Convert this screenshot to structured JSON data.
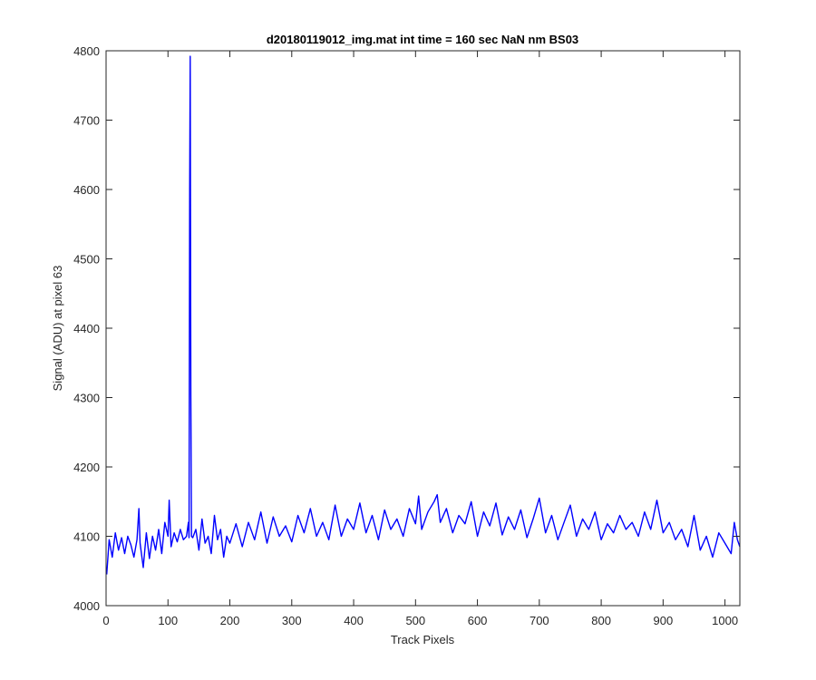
{
  "chart_data": {
    "type": "line",
    "title": "d20180119012_img.mat int time = 160 sec  NaN nm BS03",
    "xlabel": "Track Pixels",
    "ylabel": "Signal (ADU) at pixel 63",
    "xlim": [
      0,
      1024
    ],
    "ylim": [
      4000,
      4800
    ],
    "xticks": [
      0,
      100,
      200,
      300,
      400,
      500,
      600,
      700,
      800,
      900,
      1000
    ],
    "yticks": [
      4000,
      4100,
      4200,
      4300,
      4400,
      4500,
      4600,
      4700,
      4800
    ],
    "grid": false,
    "box": true,
    "line_color": "#0000ff",
    "series": [
      {
        "points_x": [
          1,
          5,
          10,
          15,
          20,
          25,
          30,
          35,
          40,
          45,
          50,
          53,
          55,
          60,
          65,
          70,
          75,
          80,
          85,
          90,
          95,
          100,
          102,
          105,
          110,
          115,
          120,
          125,
          130,
          133,
          134,
          135,
          136,
          137,
          138,
          140,
          145,
          150,
          155,
          160,
          165,
          170,
          175,
          180,
          185,
          190,
          195,
          200,
          210,
          220,
          230,
          240,
          250,
          260,
          270,
          280,
          290,
          300,
          310,
          320,
          330,
          340,
          350,
          360,
          370,
          380,
          390,
          400,
          410,
          420,
          430,
          440,
          450,
          460,
          470,
          480,
          490,
          500,
          505,
          510,
          520,
          530,
          535,
          540,
          550,
          560,
          570,
          580,
          590,
          600,
          610,
          620,
          630,
          640,
          650,
          660,
          670,
          680,
          690,
          700,
          710,
          720,
          730,
          740,
          750,
          760,
          770,
          780,
          790,
          800,
          810,
          820,
          830,
          840,
          850,
          860,
          870,
          880,
          890,
          900,
          910,
          920,
          930,
          940,
          950,
          960,
          970,
          980,
          990,
          1000,
          1010,
          1015,
          1020,
          1024
        ],
        "points_y": [
          4045,
          4095,
          4070,
          4105,
          4080,
          4098,
          4075,
          4100,
          4088,
          4070,
          4095,
          4140,
          4090,
          4055,
          4105,
          4068,
          4100,
          4080,
          4110,
          4075,
          4120,
          4100,
          4152,
          4085,
          4105,
          4092,
          4110,
          4095,
          4100,
          4120,
          4098,
          4600,
          4792,
          4300,
          4100,
          4098,
          4110,
          4080,
          4125,
          4090,
          4100,
          4075,
          4130,
          4095,
          4110,
          4070,
          4100,
          4090,
          4118,
          4085,
          4120,
          4095,
          4135,
          4090,
          4128,
          4100,
          4115,
          4092,
          4130,
          4105,
          4140,
          4100,
          4120,
          4095,
          4145,
          4100,
          4125,
          4110,
          4148,
          4105,
          4130,
          4095,
          4138,
          4110,
          4125,
          4100,
          4140,
          4118,
          4158,
          4110,
          4135,
          4150,
          4160,
          4120,
          4140,
          4105,
          4130,
          4118,
          4150,
          4100,
          4135,
          4115,
          4148,
          4102,
          4128,
          4110,
          4138,
          4098,
          4125,
          4155,
          4105,
          4130,
          4095,
          4120,
          4145,
          4100,
          4125,
          4110,
          4135,
          4095,
          4118,
          4105,
          4130,
          4110,
          4120,
          4100,
          4135,
          4110,
          4152,
          4105,
          4120,
          4095,
          4110,
          4085,
          4130,
          4080,
          4100,
          4070,
          4105,
          4090,
          4075,
          4120,
          4095,
          4085
        ]
      }
    ]
  }
}
